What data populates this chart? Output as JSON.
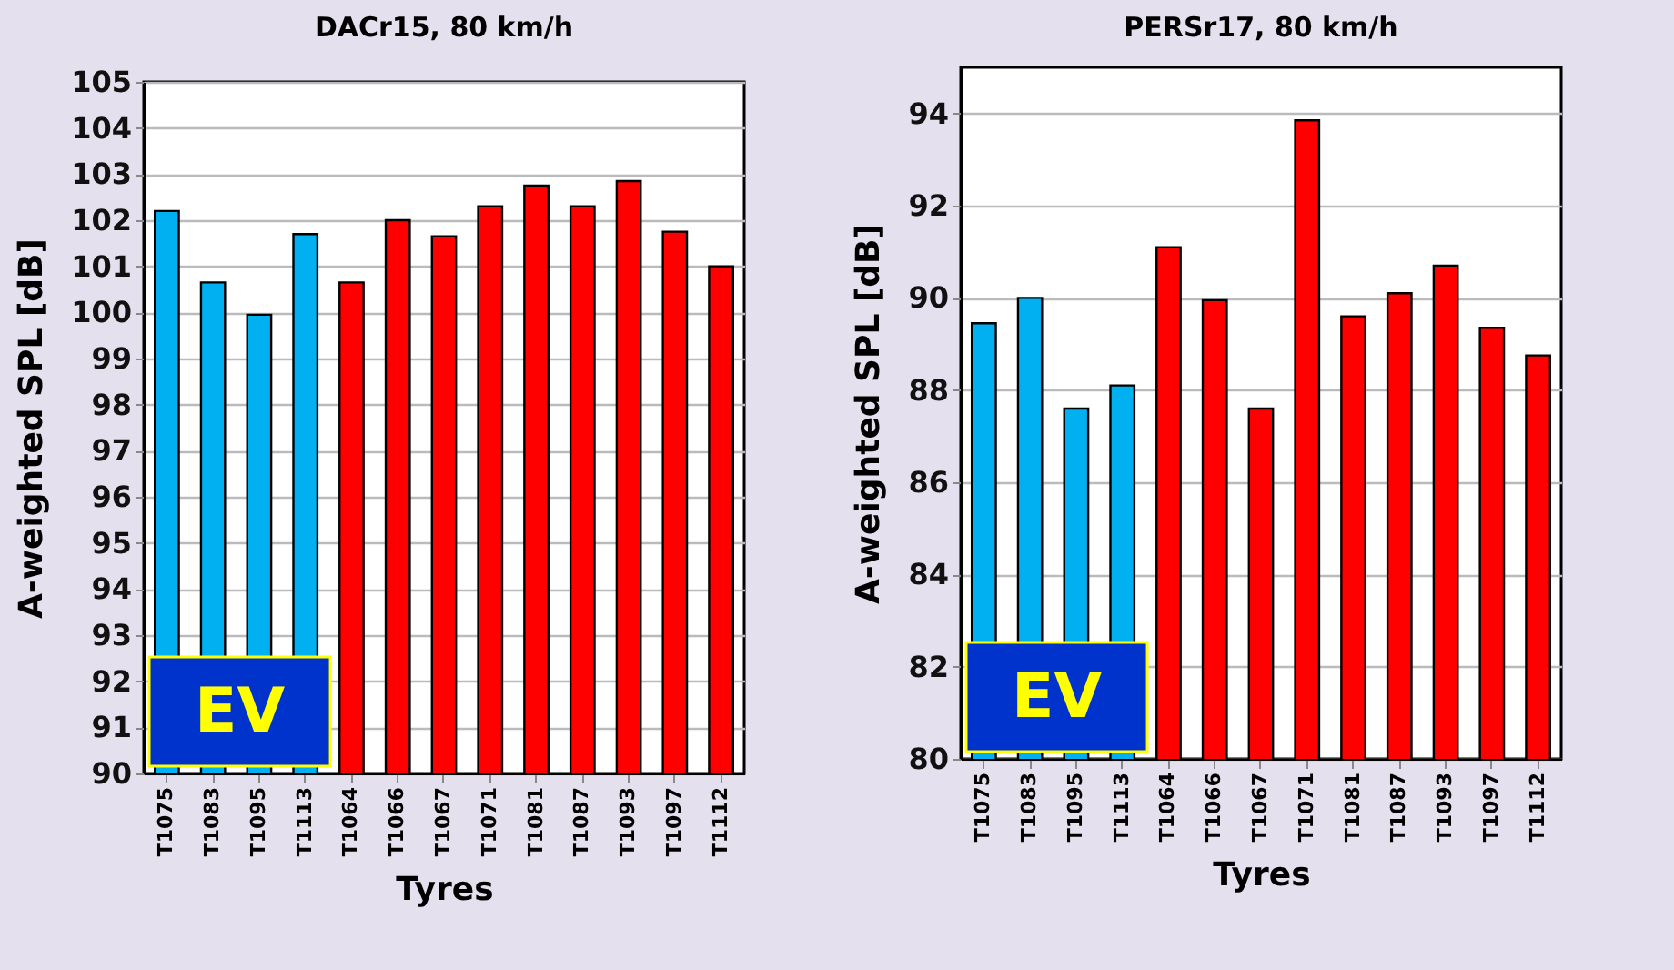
{
  "chart_data": [
    {
      "type": "bar",
      "title": "DACr15, 80 km/h",
      "xlabel": "Tyres",
      "ylabel": "A-weighted SPL [dB]",
      "categories": [
        "T1075",
        "T1083",
        "T1095",
        "T1113",
        "T1064",
        "T1066",
        "T1067",
        "T1071",
        "T1081",
        "T1087",
        "T1093",
        "T1097",
        "T1112"
      ],
      "values": [
        102.2,
        100.65,
        99.95,
        101.7,
        100.65,
        102.0,
        101.65,
        102.3,
        102.75,
        102.3,
        102.85,
        101.75,
        101.0
      ],
      "colors": [
        "#00b0f0",
        "#00b0f0",
        "#00b0f0",
        "#00b0f0",
        "#ff0000",
        "#ff0000",
        "#ff0000",
        "#ff0000",
        "#ff0000",
        "#ff0000",
        "#ff0000",
        "#ff0000",
        "#ff0000"
      ],
      "ylim": [
        90,
        105
      ],
      "yticks": [
        90,
        91,
        92,
        93,
        94,
        95,
        96,
        97,
        98,
        99,
        100,
        101,
        102,
        103,
        104,
        105
      ],
      "grid": "y",
      "annotations": [
        "EV"
      ]
    },
    {
      "type": "bar",
      "title": "PERSr17, 80 km/h",
      "xlabel": "Tyres",
      "ylabel": "A-weighted SPL [dB]",
      "categories": [
        "T1075",
        "T1083",
        "T1095",
        "T1113",
        "T1064",
        "T1066",
        "T1067",
        "T1071",
        "T1081",
        "T1087",
        "T1093",
        "T1097",
        "T1112"
      ],
      "values": [
        89.45,
        90.0,
        87.6,
        88.1,
        91.1,
        89.95,
        87.6,
        93.85,
        89.6,
        90.1,
        90.7,
        89.35,
        88.75
      ],
      "colors": [
        "#00b0f0",
        "#00b0f0",
        "#00b0f0",
        "#00b0f0",
        "#ff0000",
        "#ff0000",
        "#ff0000",
        "#ff0000",
        "#ff0000",
        "#ff0000",
        "#ff0000",
        "#ff0000",
        "#ff0000"
      ],
      "ylim": [
        80,
        95
      ],
      "yticks": [
        80,
        82,
        84,
        86,
        88,
        90,
        92,
        94
      ],
      "grid": "y",
      "annotations": [
        "EV"
      ]
    }
  ]
}
